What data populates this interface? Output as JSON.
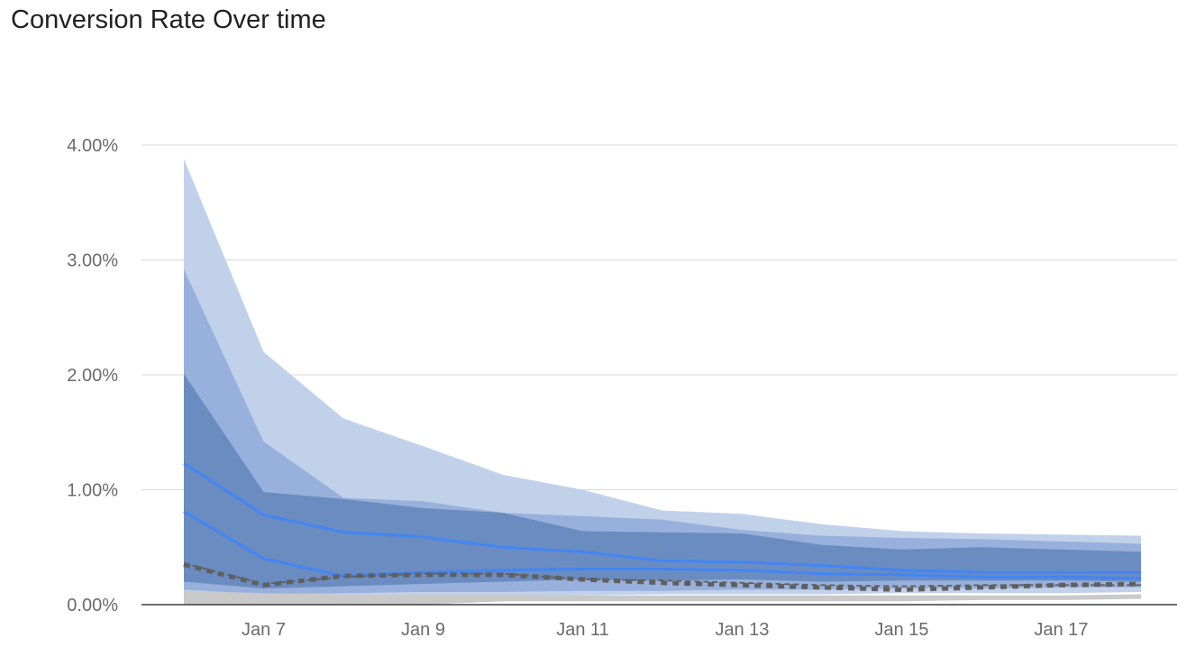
{
  "chart_data": {
    "type": "area",
    "title": "Conversion Rate Over time",
    "xlabel": "",
    "ylabel": "",
    "x": [
      "Jan 6",
      "Jan 7",
      "Jan 8",
      "Jan 9",
      "Jan 10",
      "Jan 11",
      "Jan 12",
      "Jan 13",
      "Jan 14",
      "Jan 15",
      "Jan 16",
      "Jan 17",
      "Jan 18"
    ],
    "x_ticks": [
      "Jan 7",
      "Jan 9",
      "Jan 11",
      "Jan 13",
      "Jan 15",
      "Jan 17"
    ],
    "y_ticks": [
      "0.00%",
      "1.00%",
      "2.00%",
      "3.00%",
      "4.00%"
    ],
    "ylim": [
      0,
      4
    ],
    "y_unit": "%",
    "grid": true,
    "legend": "none",
    "bands": [
      {
        "color": "#c2d1ea",
        "upper": [
          3.88,
          2.2,
          1.62,
          1.38,
          1.13,
          1.0,
          0.82,
          0.79,
          0.7,
          0.64,
          0.62,
          0.61,
          0.6
        ],
        "lower": [
          0.1,
          0.05,
          0.06,
          0.07,
          0.08,
          0.08,
          0.09,
          0.09,
          0.09,
          0.1,
          0.1,
          0.1,
          0.11
        ]
      },
      {
        "color": "#98b1dc",
        "upper": [
          2.92,
          1.42,
          0.93,
          0.9,
          0.8,
          0.77,
          0.74,
          0.65,
          0.6,
          0.58,
          0.57,
          0.55,
          0.53
        ],
        "lower": [
          0.13,
          0.09,
          0.1,
          0.11,
          0.11,
          0.12,
          0.12,
          0.13,
          0.13,
          0.14,
          0.14,
          0.15,
          0.15
        ]
      },
      {
        "color": "#6a8cc1",
        "upper": [
          2.01,
          0.98,
          0.92,
          0.84,
          0.8,
          0.64,
          0.63,
          0.62,
          0.52,
          0.48,
          0.5,
          0.48,
          0.46
        ],
        "lower": [
          0.2,
          0.14,
          0.16,
          0.18,
          0.2,
          0.22,
          0.21,
          0.22,
          0.2,
          0.21,
          0.21,
          0.21,
          0.2
        ]
      },
      {
        "color": "#c9c9c9",
        "upper": [
          0.12,
          0.1,
          0.09,
          0.09,
          0.09,
          0.08,
          0.08,
          0.08,
          0.08,
          0.08,
          0.08,
          0.08,
          0.09
        ],
        "lower": [
          0.0,
          0.0,
          0.0,
          0.0,
          0.03,
          0.03,
          0.03,
          0.03,
          0.03,
          0.03,
          0.04,
          0.04,
          0.05
        ]
      }
    ],
    "series": [
      {
        "color": "#4285f4",
        "style": "solid",
        "values": [
          1.23,
          0.78,
          0.63,
          0.59,
          0.5,
          0.46,
          0.38,
          0.37,
          0.34,
          0.3,
          0.28,
          0.28,
          0.28
        ]
      },
      {
        "color": "#4285f4",
        "style": "solid",
        "values": [
          0.81,
          0.4,
          0.25,
          0.28,
          0.3,
          0.31,
          0.31,
          0.3,
          0.27,
          0.26,
          0.24,
          0.24,
          0.23
        ]
      },
      {
        "color": "#5f5f5f",
        "style": "dashed-thin",
        "values": [
          0.36,
          0.18,
          0.24,
          0.27,
          0.27,
          0.22,
          0.21,
          0.19,
          0.17,
          0.16,
          0.17,
          0.17,
          0.17
        ]
      },
      {
        "color": "#5f5f5f",
        "style": "dashed-thick",
        "values": [
          0.35,
          0.17,
          0.25,
          0.26,
          0.26,
          0.22,
          0.19,
          0.17,
          0.15,
          0.13,
          0.15,
          0.17,
          0.18
        ]
      }
    ]
  }
}
